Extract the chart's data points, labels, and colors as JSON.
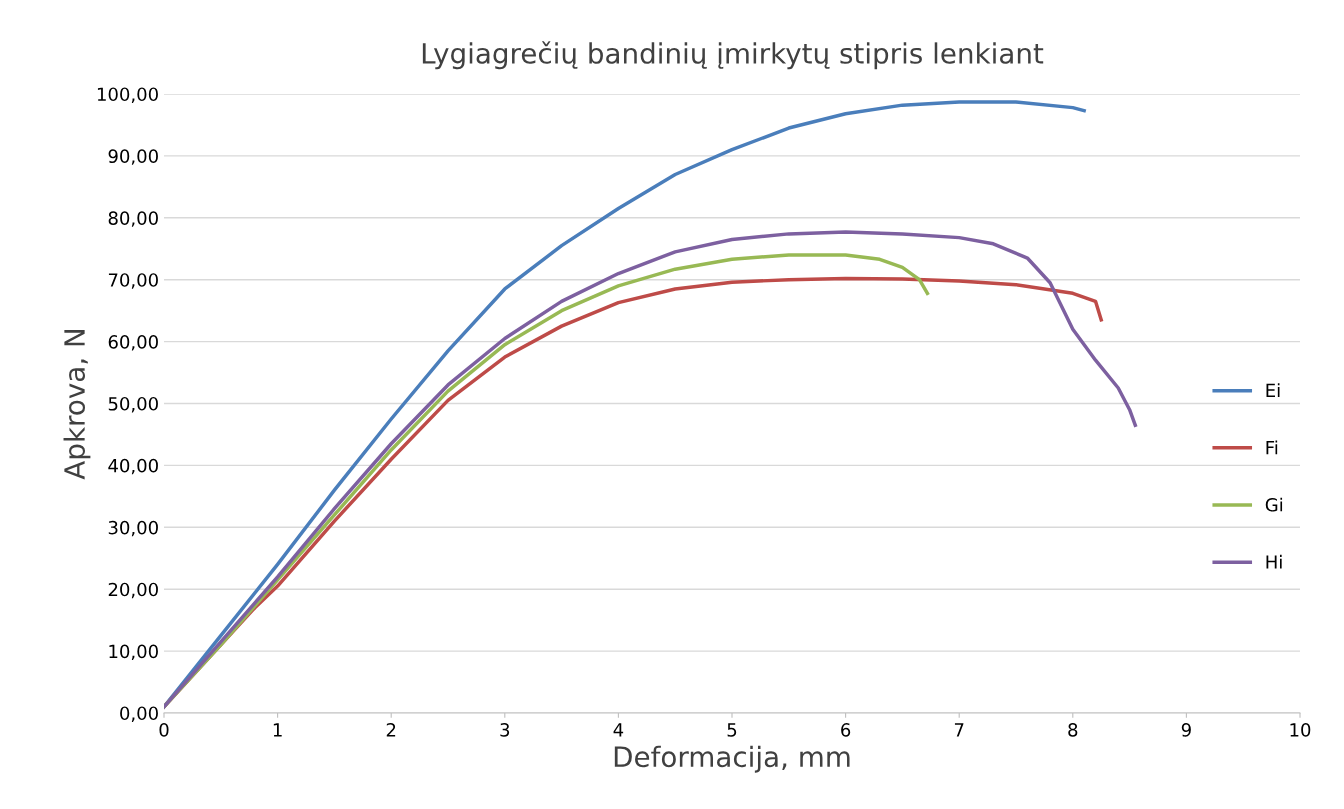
{
  "chart_data": {
    "type": "line",
    "title": "Lygiagrečių bandinių įmirkytų stipris lenkiant",
    "xlabel": "Deformacija, mm",
    "ylabel": "Apkrova, N",
    "series": [
      {
        "name": "Ei",
        "color": "#4a7ebb",
        "x": [
          0,
          0.5,
          1,
          1.5,
          2,
          2.5,
          3,
          3.5,
          4,
          4.5,
          5,
          5.5,
          6,
          6.5,
          7,
          7.5,
          8,
          8.1
        ],
        "values": [
          1,
          12.5,
          24,
          36,
          47.5,
          58.5,
          68.5,
          75.5,
          81.5,
          87,
          91,
          94.5,
          96.8,
          98.2,
          98.7,
          98.7,
          97.8,
          97.3
        ]
      },
      {
        "name": "Fi",
        "color": "#be4b48",
        "x": [
          0,
          0.8,
          1,
          1.5,
          2,
          2.5,
          3,
          3.5,
          4,
          4.5,
          5,
          5.5,
          6,
          6.5,
          7,
          7.5,
          8,
          8.2,
          8.25
        ],
        "values": [
          1,
          17,
          20.5,
          31,
          41,
          50.5,
          57.5,
          62.5,
          66.3,
          68.5,
          69.6,
          70,
          70.2,
          70.1,
          69.8,
          69.2,
          67.8,
          66.5,
          63.5
        ]
      },
      {
        "name": "Gi",
        "color": "#98b954",
        "x": [
          0,
          0.5,
          1,
          1.5,
          2,
          2.5,
          3,
          3.5,
          4,
          4.5,
          5,
          5.5,
          6,
          6.3,
          6.5,
          6.65,
          6.72
        ],
        "values": [
          1,
          11,
          21.5,
          32,
          42.5,
          52,
          59.5,
          65,
          69,
          71.7,
          73.3,
          74,
          74,
          73.3,
          72,
          70,
          67.8
        ]
      },
      {
        "name": "Hi",
        "color": "#7d60a0",
        "x": [
          0,
          0.5,
          1,
          1.5,
          2,
          2.5,
          3,
          3.5,
          4,
          4.5,
          5,
          5.5,
          6,
          6.5,
          7,
          7.3,
          7.6,
          7.8,
          8,
          8.2,
          8.4,
          8.5,
          8.55
        ],
        "values": [
          1,
          11.5,
          22,
          33,
          43.5,
          53,
          60.5,
          66.5,
          71,
          74.5,
          76.5,
          77.4,
          77.7,
          77.4,
          76.8,
          75.8,
          73.5,
          69.5,
          62,
          57,
          52.5,
          49,
          46.5
        ]
      }
    ],
    "xlim": [
      0,
      10
    ],
    "xticks": [
      0,
      1,
      2,
      3,
      4,
      5,
      6,
      7,
      8,
      9,
      10
    ],
    "ylim": [
      0,
      100
    ],
    "yticks": [
      {
        "value": 0,
        "label": "0,00"
      },
      {
        "value": 10,
        "label": "10,00"
      },
      {
        "value": 20,
        "label": "20,00"
      },
      {
        "value": 30,
        "label": "30,00"
      },
      {
        "value": 40,
        "label": "40,00"
      },
      {
        "value": 50,
        "label": "50,00"
      },
      {
        "value": 60,
        "label": "60,00"
      },
      {
        "value": 70,
        "label": "70,00"
      },
      {
        "value": 80,
        "label": "80,00"
      },
      {
        "value": 90,
        "label": "90,00"
      },
      {
        "value": 100,
        "label": "100,00"
      }
    ],
    "grid": "y",
    "legend": "right",
    "line_style": "solid"
  }
}
